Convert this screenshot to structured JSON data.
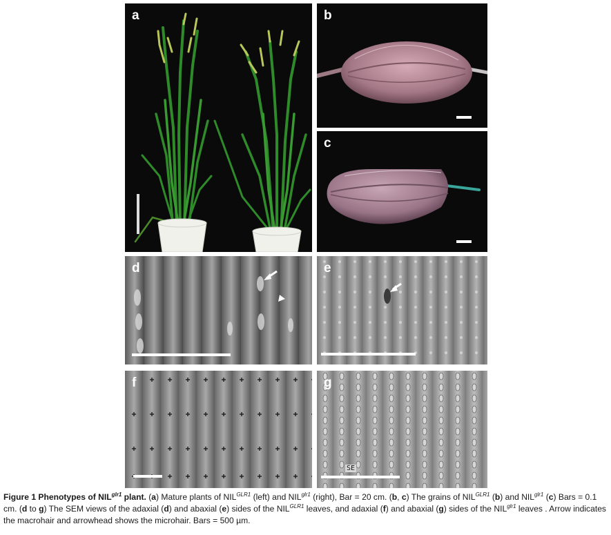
{
  "panels": {
    "a": {
      "label": "a"
    },
    "b": {
      "label": "b"
    },
    "c": {
      "label": "c"
    },
    "d": {
      "label": "d"
    },
    "e": {
      "label": "e"
    },
    "f": {
      "label": "f"
    },
    "g": {
      "label": "g",
      "annotation": "SE"
    }
  },
  "caption": {
    "figure_label": "Figure 1",
    "title_prefix": "Phenotypes of NIL",
    "title_sup": "glr1",
    "title_suffix": " plant.",
    "segments": [
      {
        "t": "(",
        "b": false
      },
      {
        "t": "a",
        "b": true
      },
      {
        "t": ") Mature plants of NIL",
        "b": false
      },
      {
        "t": "GLR1",
        "sup": true
      },
      {
        "t": " (left) and NIL",
        "b": false
      },
      {
        "t": "glr1",
        "sup": true
      },
      {
        "t": " (right), Bar = 20 cm. (",
        "b": false
      },
      {
        "t": "b",
        "b": true
      },
      {
        "t": ", ",
        "b": false
      },
      {
        "t": "c",
        "b": true
      },
      {
        "t": ") The grains of NIL",
        "b": false
      },
      {
        "t": "GLR1",
        "sup": true
      },
      {
        "t": " (",
        "b": false
      },
      {
        "t": "b",
        "b": true
      },
      {
        "t": ") and NIL",
        "b": false
      },
      {
        "t": "glr1",
        "sup": true
      },
      {
        "t": " (",
        "b": false
      },
      {
        "t": "c",
        "b": true
      },
      {
        "t": ") Bars = 0.1 cm. (",
        "b": false
      },
      {
        "t": "d",
        "b": true
      },
      {
        "t": " to ",
        "b": false
      },
      {
        "t": "g",
        "b": true
      },
      {
        "t": ") The SEM views of the adaxial (",
        "b": false
      },
      {
        "t": "d",
        "b": true
      },
      {
        "t": ") and abaxial (",
        "b": false
      },
      {
        "t": "e",
        "b": true
      },
      {
        "t": ") sides of the NIL",
        "b": false
      },
      {
        "t": "GLR1",
        "sup": true
      },
      {
        "t": " leaves, and adaxial (",
        "b": false
      },
      {
        "t": "f",
        "b": true
      },
      {
        "t": ") and abaxial (",
        "b": false
      },
      {
        "t": "g",
        "b": true
      },
      {
        "t": ") sides of the NIL",
        "b": false
      },
      {
        "t": "glr1",
        "sup": true
      },
      {
        "t": " leaves . Arrow indicates the macrohair and arrowhead shows the microhair. Bars = 500 µm.",
        "b": false
      }
    ]
  },
  "colors": {
    "figure_bg": "#0a0a0a",
    "leaf_green": "#2f8a2a",
    "grain_pink": "#b28a96",
    "sem_gray": "#8c8c8c"
  }
}
